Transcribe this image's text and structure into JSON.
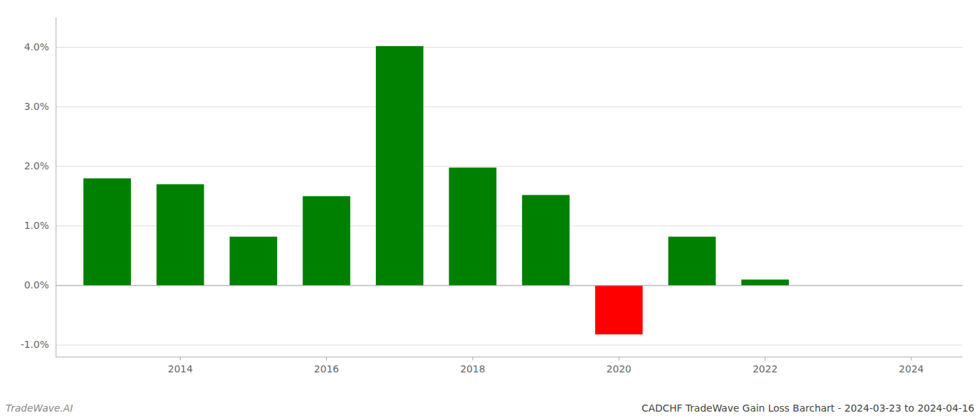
{
  "chart_data": {
    "type": "bar",
    "title": "CADCHF TradeWave Gain Loss Barchart - 2024-03-23 to 2024-04-16",
    "annotations": [
      "TradeWave.AI"
    ],
    "x": [
      2013,
      2014,
      2015,
      2016,
      2017,
      2018,
      2019,
      2020,
      2021,
      2022,
      2023
    ],
    "values": [
      1.8,
      1.7,
      0.82,
      1.5,
      4.02,
      1.98,
      1.52,
      -0.82,
      0.82,
      0.1,
      0.0
    ],
    "colors": [
      "#008000",
      "#008000",
      "#008000",
      "#008000",
      "#008000",
      "#008000",
      "#008000",
      "#ff0000",
      "#008000",
      "#008000",
      "#008000"
    ],
    "xlim": [
      2012.3,
      2024.7
    ],
    "xticks": [
      2014,
      2016,
      2018,
      2020,
      2022,
      2024
    ],
    "ylim": [
      -1.2,
      4.5
    ],
    "yticks": [
      {
        "value": -1.0,
        "label": "-1.0%"
      },
      {
        "value": 0.0,
        "label": "0.0%"
      },
      {
        "value": 1.0,
        "label": "1.0%"
      },
      {
        "value": 2.0,
        "label": "2.0%"
      },
      {
        "value": 3.0,
        "label": "3.0%"
      },
      {
        "value": 4.0,
        "label": "4.0%"
      }
    ],
    "grid": true
  }
}
